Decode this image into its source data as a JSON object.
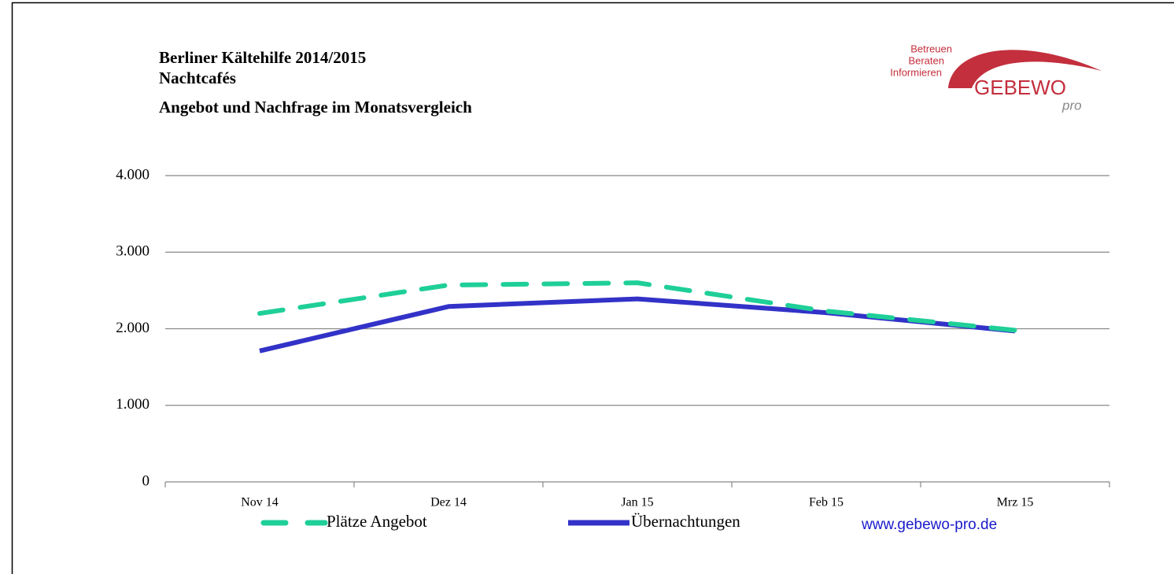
{
  "chart_data": {
    "type": "line",
    "title": [
      "Berliner Kältehilfe 2014/2015",
      "Nachtcafés",
      "Angebot und Nachfrage im Monatsvergleich"
    ],
    "categories": [
      "Nov 14",
      "Dez 14",
      "Jan 15",
      "Feb 15",
      "Mrz 15"
    ],
    "series": [
      {
        "name": "Plätze Angebot",
        "color": "#1fcf98",
        "dashed": true,
        "values": [
          2200,
          2570,
          2600,
          2230,
          1980
        ]
      },
      {
        "name": "Übernachtungen",
        "color": "#3232c8",
        "dashed": false,
        "values": [
          1710,
          2290,
          2390,
          2210,
          1970
        ]
      }
    ],
    "ylim": [
      0,
      4000
    ],
    "yticks": [
      0,
      {
        "value": 1000,
        "label": "1.000"
      },
      {
        "value": 2000,
        "label": "2.000"
      },
      {
        "value": 3000,
        "label": "3.000"
      },
      {
        "value": 4000,
        "label": "4.000"
      }
    ],
    "grid": true,
    "legend": "bottom",
    "logo": {
      "lines": [
        "Betreuen",
        "Beraten",
        "Informieren"
      ],
      "name": "GEBEWO",
      "sub": "pro"
    },
    "website": "www.gebewo-pro.de"
  }
}
